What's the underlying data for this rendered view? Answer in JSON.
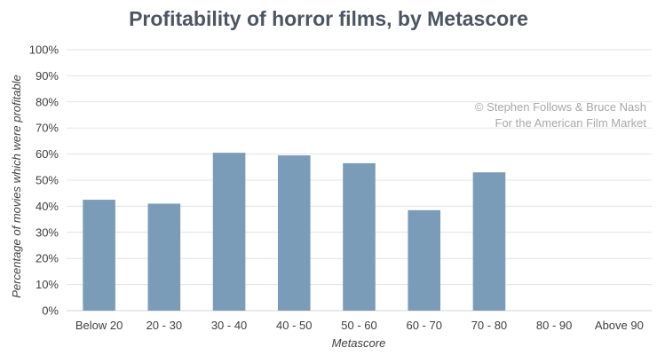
{
  "chart_data": {
    "type": "bar",
    "title": "Profitability of horror films, by Metascore",
    "xlabel": "Metascore",
    "ylabel": "Percentage of movies which were profitable",
    "categories": [
      "Below 20",
      "20 - 30",
      "30 - 40",
      "40 - 50",
      "50 - 60",
      "60 - 70",
      "70 - 80",
      "80 - 90",
      "Above 90"
    ],
    "values": [
      42.5,
      41,
      60.5,
      59.5,
      56.5,
      38.5,
      53,
      null,
      null
    ],
    "ylim": [
      0,
      100
    ],
    "yticks": [
      0,
      10,
      20,
      30,
      40,
      50,
      60,
      70,
      80,
      90,
      100
    ],
    "ytick_labels": [
      "0%",
      "10%",
      "20%",
      "30%",
      "40%",
      "50%",
      "60%",
      "70%",
      "80%",
      "90%",
      "100%"
    ],
    "grid": true,
    "bar_color": "#7b9cb9",
    "annotation": [
      "© Stephen Follows & Bruce Nash",
      "For the American Film Market"
    ],
    "annotation_placement": "top-right"
  }
}
